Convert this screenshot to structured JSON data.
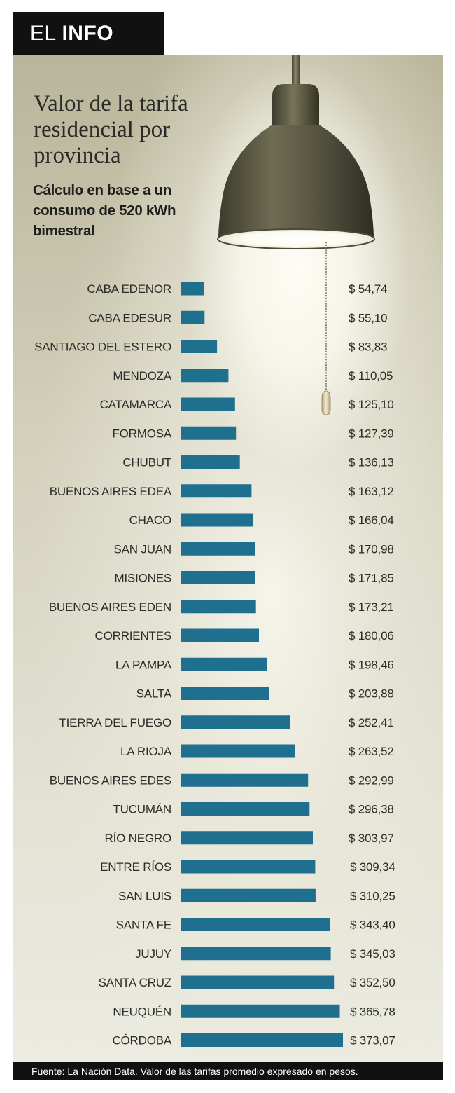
{
  "header": {
    "prefix": "EL",
    "bold": "INFO"
  },
  "title": "Valor de la tarifa residencial por provincia",
  "subtitle": "Cálculo en base a un consumo de 520 kWh bimestral",
  "footer": "Fuente: La Nación Data. Valor de las tarifas promedio expresado en pesos.",
  "colors": {
    "bar": "#1f6f8f",
    "header": "#111111"
  },
  "icons": {
    "lamp": "pendant-lamp-illustration"
  },
  "chart_data": {
    "type": "bar",
    "orientation": "horizontal",
    "title": "Valor de la tarifa residencial por provincia",
    "subtitle": "Cálculo en base a un consumo de 520 kWh bimestral",
    "xlim": [
      0,
      400
    ],
    "grid": false,
    "categories": [
      "CABA EDENOR",
      "CABA EDESUR",
      "SANTIAGO DEL ESTERO",
      "MENDOZA",
      "CATAMARCA",
      "FORMOSA",
      "CHUBUT",
      "BUENOS AIRES EDEA",
      "CHACO",
      "SAN JUAN",
      "MISIONES",
      "BUENOS AIRES EDEN",
      "CORRIENTES",
      "LA PAMPA",
      "SALTA",
      "TIERRA DEL FUEGO",
      "LA RIOJA",
      "BUENOS AIRES EDES",
      "TUCUMÁN",
      "RÍO NEGRO",
      "ENTRE RÍOS",
      "SAN LUIS",
      "SANTA FE",
      "JUJUY",
      "SANTA CRUZ",
      "NEUQUÉN",
      "CÓRDOBA"
    ],
    "values": [
      54.74,
      55.1,
      83.83,
      110.05,
      125.1,
      127.39,
      136.13,
      163.12,
      166.04,
      170.98,
      171.85,
      173.21,
      180.06,
      198.46,
      203.88,
      252.41,
      263.52,
      292.99,
      296.38,
      303.97,
      309.34,
      310.25,
      343.4,
      345.03,
      352.5,
      365.78,
      373.07
    ],
    "value_labels": [
      "$ 54,74",
      "$ 55,10",
      "$ 83,83",
      "$ 110,05",
      "$ 125,10",
      "$ 127,39",
      "$ 136,13",
      "$ 163,12",
      "$ 166,04",
      "$ 170,98",
      "$ 171,85",
      "$ 173,21",
      "$ 180,06",
      "$ 198,46",
      "$ 203,88",
      "$ 252,41",
      "$ 263,52",
      "$ 292,99",
      "$ 296,38",
      "$ 303,97",
      "$ 309,34",
      "$ 310,25",
      "$ 343,40",
      "$ 345,03",
      "$ 352,50",
      "$ 365,78",
      "$ 373,07"
    ]
  }
}
